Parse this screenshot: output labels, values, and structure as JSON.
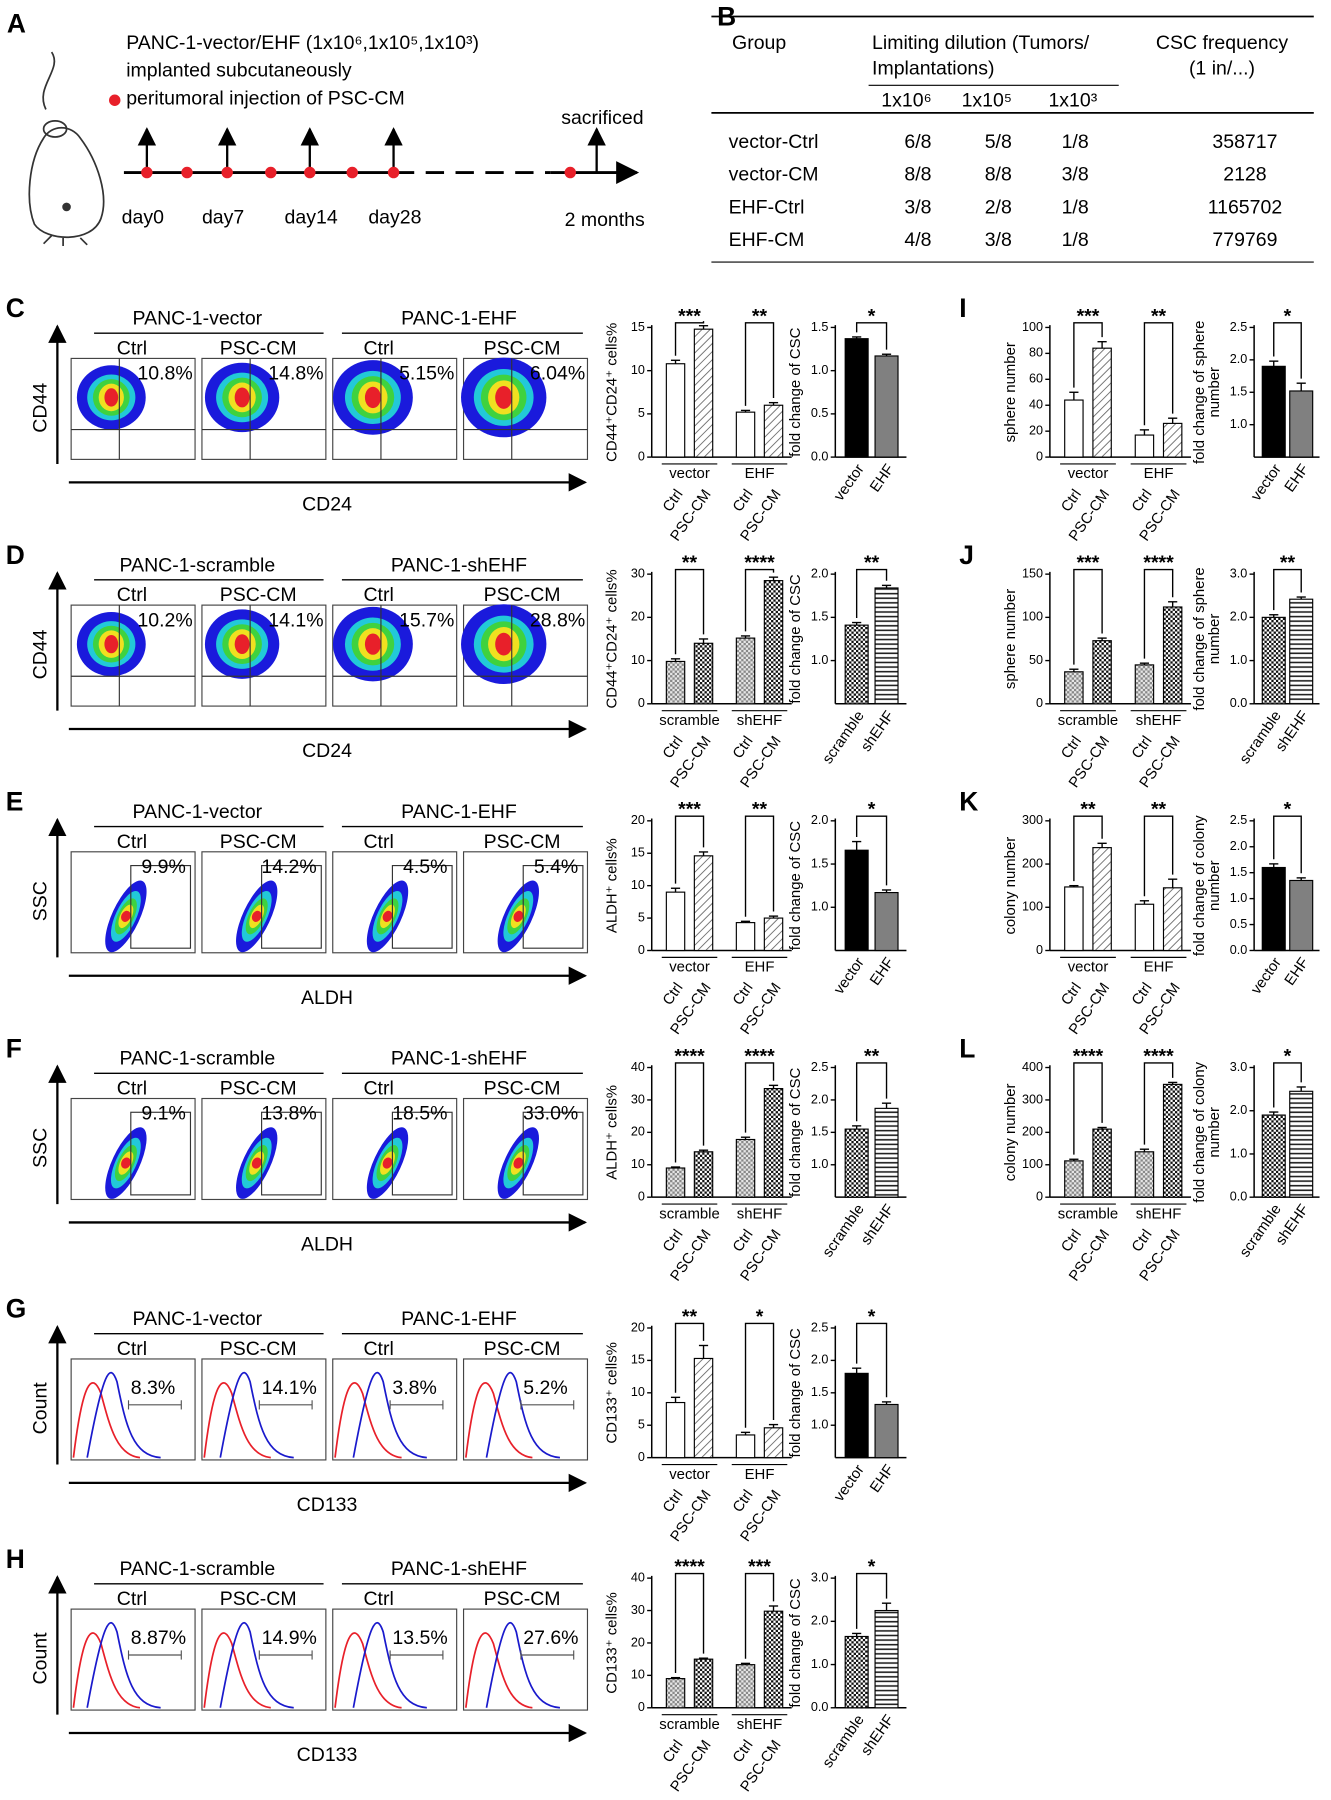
{
  "timeline": {
    "label": "A",
    "title_lines": [
      "PANC-1-vector/EHF (1x10⁶,1x10⁵,1x10³)",
      "implanted subcutaneously"
    ],
    "legend": "peritumoral injection of PSC-CM",
    "days": [
      "day0",
      "day7",
      "day14",
      "day28"
    ],
    "end_label": "sacrificed",
    "end_time": "2 months"
  },
  "table": {
    "label": "B",
    "header": [
      [
        "Group"
      ],
      [
        "Limiting dilution (Tumors/",
        "Implantations)"
      ],
      [
        "CSC frequency",
        "(1 in/...)"
      ]
    ],
    "subheader": [
      "1x10⁶",
      "1x10⁵",
      "1x10³"
    ],
    "rows": [
      [
        "vector-Ctrl",
        "6/8",
        "5/8",
        "1/8",
        "358717"
      ],
      [
        "vector-CM",
        "8/8",
        "8/8",
        "3/8",
        "2128"
      ],
      [
        "EHF-Ctrl",
        "3/8",
        "2/8",
        "1/8",
        "1165702"
      ],
      [
        "EHF-CM",
        "4/8",
        "3/8",
        "1/8",
        "779769"
      ]
    ]
  },
  "flow_panels": [
    {
      "label": "C",
      "kind": "quadrant",
      "groups": [
        "PANC-1-vector",
        "PANC-1-EHF"
      ],
      "conditions": [
        "Ctrl",
        "PSC-CM",
        "Ctrl",
        "PSC-CM"
      ],
      "percents": [
        "10.8%",
        "14.8%",
        "5.15%",
        "6.04%"
      ],
      "y_axis": "CD44",
      "x_axis": "CD24"
    },
    {
      "label": "D",
      "kind": "quadrant",
      "groups": [
        "PANC-1-scramble",
        "PANC-1-shEHF"
      ],
      "conditions": [
        "Ctrl",
        "PSC-CM",
        "Ctrl",
        "PSC-CM"
      ],
      "percents": [
        "10.2%",
        "14.1%",
        "15.7%",
        "28.8%"
      ],
      "y_axis": "CD44",
      "x_axis": "CD24"
    },
    {
      "label": "E",
      "kind": "gate",
      "groups": [
        "PANC-1-vector",
        "PANC-1-EHF"
      ],
      "conditions": [
        "Ctrl",
        "PSC-CM",
        "Ctrl",
        "PSC-CM"
      ],
      "percents": [
        "9.9%",
        "14.2%",
        "4.5%",
        "5.4%"
      ],
      "y_axis": "SSC",
      "x_axis": "ALDH"
    },
    {
      "label": "F",
      "kind": "gate",
      "groups": [
        "PANC-1-scramble",
        "PANC-1-shEHF"
      ],
      "conditions": [
        "Ctrl",
        "PSC-CM",
        "Ctrl",
        "PSC-CM"
      ],
      "percents": [
        "9.1%",
        "13.8%",
        "18.5%",
        "33.0%"
      ],
      "y_axis": "SSC",
      "x_axis": "ALDH"
    },
    {
      "label": "G",
      "kind": "histogram",
      "groups": [
        "PANC-1-vector",
        "PANC-1-EHF"
      ],
      "conditions": [
        "Ctrl",
        "PSC-CM",
        "Ctrl",
        "PSC-CM"
      ],
      "percents": [
        "8.3%",
        "14.1%",
        "3.8%",
        "5.2%"
      ],
      "y_axis": "Count",
      "x_axis": "CD133"
    },
    {
      "label": "H",
      "kind": "histogram",
      "groups": [
        "PANC-1-scramble",
        "PANC-1-shEHF"
      ],
      "conditions": [
        "Ctrl",
        "PSC-CM",
        "Ctrl",
        "PSC-CM"
      ],
      "percents": [
        "8.87%",
        "14.9%",
        "13.5%",
        "27.6%"
      ],
      "y_axis": "Count",
      "x_axis": "CD133"
    }
  ],
  "chart_data": [
    {
      "type": "bar",
      "ylabel": "CD44⁺CD24⁺ cells%",
      "groups": [
        "vector",
        "EHF"
      ],
      "categories": [
        "Ctrl",
        "PSC-CM",
        "Ctrl",
        "PSC-CM"
      ],
      "values": [
        10.8,
        14.8,
        5.2,
        6.0
      ],
      "errors": [
        0.4,
        0.4,
        0.2,
        0.3
      ],
      "fills": [
        "#ffffff",
        "hatch",
        "#ffffff",
        "hatch"
      ],
      "ylim": [
        0,
        15
      ],
      "yticks": [
        0,
        5,
        10,
        15
      ],
      "significance": [
        "***",
        "**"
      ]
    },
    {
      "type": "bar",
      "ylabel": "fold change of CSC",
      "categories": [
        "vector",
        "EHF"
      ],
      "values": [
        1.37,
        1.17
      ],
      "errors": [
        0.02,
        0.02
      ],
      "fills": [
        "#000000",
        "#808080"
      ],
      "ylim": [
        0,
        1.5
      ],
      "yticks": [
        {
          "value": 0,
          "label": "0.0"
        },
        0.5,
        {
          "value": 1,
          "label": "1.0"
        },
        1.5
      ],
      "significance": [
        "*"
      ]
    },
    {
      "type": "bar",
      "ylabel": "CD44⁺CD24⁺ cells%",
      "groups": [
        "scramble",
        "shEHF"
      ],
      "categories": [
        "Ctrl",
        "PSC-CM",
        "Ctrl",
        "PSC-CM"
      ],
      "values": [
        9.8,
        14.0,
        15.2,
        28.5
      ],
      "errors": [
        0.6,
        1.0,
        0.5,
        0.8
      ],
      "fills": [
        "checkLight",
        "checkDark",
        "checkLight",
        "checkDark"
      ],
      "ylim": [
        0,
        30
      ],
      "yticks": [
        0,
        10,
        20,
        30
      ],
      "significance": [
        "**",
        "****"
      ]
    },
    {
      "type": "bar",
      "ylabel": "fold change of CSC",
      "categories": [
        "scramble",
        "shEHF"
      ],
      "values": [
        1.41,
        1.84
      ],
      "errors": [
        0.03,
        0.03
      ],
      "fills": [
        "checkDark",
        "hstripe"
      ],
      "ylim": [
        0.5,
        2.0
      ],
      "yticks": [
        {
          "value": 1,
          "label": "1.0"
        },
        1.5,
        {
          "value": 2,
          "label": "2.0"
        }
      ],
      "significance": [
        "**"
      ]
    },
    {
      "type": "bar",
      "ylabel": "ALDH⁺ cells%",
      "groups": [
        "vector",
        "EHF"
      ],
      "categories": [
        "Ctrl",
        "PSC-CM",
        "Ctrl",
        "PSC-CM"
      ],
      "values": [
        9.0,
        14.6,
        4.3,
        5.0
      ],
      "errors": [
        0.6,
        0.6,
        0.2,
        0.3
      ],
      "fills": [
        "#ffffff",
        "hatch",
        "#ffffff",
        "hatch"
      ],
      "ylim": [
        0,
        20
      ],
      "yticks": [
        0,
        5,
        10,
        15,
        20
      ],
      "significance": [
        "***",
        "**"
      ]
    },
    {
      "type": "bar",
      "ylabel": "fold change of CSC",
      "categories": [
        "vector",
        "EHF"
      ],
      "values": [
        1.66,
        1.17
      ],
      "errors": [
        0.1,
        0.03
      ],
      "fills": [
        "#000000",
        "#808080"
      ],
      "ylim": [
        0.5,
        2.0
      ],
      "yticks": [
        {
          "value": 1,
          "label": "1.0"
        },
        1.5,
        {
          "value": 2,
          "label": "2.0"
        }
      ],
      "significance": [
        "*"
      ]
    },
    {
      "type": "bar",
      "ylabel": "ALDH⁺ cells%",
      "groups": [
        "scramble",
        "shEHF"
      ],
      "categories": [
        "Ctrl",
        "PSC-CM",
        "Ctrl",
        "PSC-CM"
      ],
      "values": [
        9.0,
        14.0,
        17.8,
        33.5
      ],
      "errors": [
        0.3,
        0.5,
        0.7,
        1.0
      ],
      "fills": [
        "checkLight",
        "checkDark",
        "checkLight",
        "checkDark"
      ],
      "ylim": [
        0,
        40
      ],
      "yticks": [
        0,
        10,
        20,
        30,
        40
      ],
      "significance": [
        "****",
        "****"
      ]
    },
    {
      "type": "bar",
      "ylabel": "fold change of CSC",
      "categories": [
        "scramble",
        "shEHF"
      ],
      "values": [
        1.55,
        1.87
      ],
      "errors": [
        0.05,
        0.08
      ],
      "fills": [
        "checkDark",
        "hstripe"
      ],
      "ylim": [
        0.5,
        2.5
      ],
      "yticks": [
        {
          "value": 1,
          "label": "1.0"
        },
        1.5,
        {
          "value": 2,
          "label": "2.0"
        },
        2.5
      ],
      "significance": [
        "**"
      ]
    },
    {
      "type": "bar",
      "ylabel": "CD133⁺ cells%",
      "groups": [
        "vector",
        "EHF"
      ],
      "categories": [
        "Ctrl",
        "PSC-CM",
        "Ctrl",
        "PSC-CM"
      ],
      "values": [
        8.5,
        15.3,
        3.5,
        4.6
      ],
      "errors": [
        0.8,
        2.0,
        0.4,
        0.5
      ],
      "fills": [
        "#ffffff",
        "hatch",
        "#ffffff",
        "hatch"
      ],
      "ylim": [
        0,
        20
      ],
      "yticks": [
        0,
        5,
        10,
        15,
        20
      ],
      "significance": [
        "**",
        "*"
      ]
    },
    {
      "type": "bar",
      "ylabel": "fold change of CSC",
      "categories": [
        "vector",
        "EHF"
      ],
      "values": [
        1.8,
        1.32
      ],
      "errors": [
        0.08,
        0.04
      ],
      "fills": [
        "#000000",
        "#808080"
      ],
      "ylim": [
        0.5,
        2.5
      ],
      "yticks": [
        {
          "value": 1,
          "label": "1.0"
        },
        1.5,
        {
          "value": 2,
          "label": "2.0"
        },
        2.5
      ],
      "significance": [
        "*"
      ]
    },
    {
      "type": "bar",
      "ylabel": "CD133⁺ cells%",
      "groups": [
        "scramble",
        "shEHF"
      ],
      "categories": [
        "Ctrl",
        "PSC-CM",
        "Ctrl",
        "PSC-CM"
      ],
      "values": [
        9.0,
        15.0,
        13.3,
        29.8
      ],
      "errors": [
        0.3,
        0.3,
        0.4,
        1.6
      ],
      "fills": [
        "checkLight",
        "checkDark",
        "checkLight",
        "checkDark"
      ],
      "ylim": [
        0,
        40
      ],
      "yticks": [
        0,
        10,
        20,
        30,
        40
      ],
      "significance": [
        "****",
        "***"
      ]
    },
    {
      "type": "bar",
      "ylabel": "fold change of CSC",
      "categories": [
        "scramble",
        "shEHF"
      ],
      "values": [
        1.65,
        2.25
      ],
      "errors": [
        0.07,
        0.17
      ],
      "fills": [
        "checkDark",
        "hstripe"
      ],
      "ylim": [
        0,
        3
      ],
      "yticks": [
        {
          "value": 0,
          "label": "0.0"
        },
        {
          "value": 1,
          "label": "1.0"
        },
        {
          "value": 2,
          "label": "2.0"
        },
        {
          "value": 3,
          "label": "3.0"
        }
      ],
      "significance": [
        "*"
      ]
    },
    {
      "type": "bar",
      "panel": "I",
      "ylabel": "sphere number",
      "groups": [
        "vector",
        "EHF"
      ],
      "categories": [
        "Ctrl",
        "PSC-CM",
        "Ctrl",
        "PSC-CM"
      ],
      "values": [
        44,
        84,
        17,
        26
      ],
      "errors": [
        6,
        5,
        4,
        4
      ],
      "fills": [
        "#ffffff",
        "hatch",
        "#ffffff",
        "hatch"
      ],
      "ylim": [
        0,
        100
      ],
      "yticks": [
        0,
        20,
        40,
        60,
        80,
        100
      ],
      "significance": [
        "***",
        "**"
      ]
    },
    {
      "type": "bar",
      "ylabel": [
        "fold change of sphere",
        "number"
      ],
      "categories": [
        "vector",
        "EHF"
      ],
      "values": [
        1.9,
        1.52
      ],
      "errors": [
        0.08,
        0.12
      ],
      "fills": [
        "#000000",
        "#808080"
      ],
      "ylim": [
        0.5,
        2.5
      ],
      "yticks": [
        {
          "value": 1,
          "label": "1.0"
        },
        1.5,
        {
          "value": 2,
          "label": "2.0"
        },
        2.5
      ],
      "significance": [
        "*"
      ]
    },
    {
      "type": "bar",
      "panel": "J",
      "ylabel": "sphere number",
      "groups": [
        "scramble",
        "shEHF"
      ],
      "categories": [
        "Ctrl",
        "PSC-CM",
        "Ctrl",
        "PSC-CM"
      ],
      "values": [
        37,
        73,
        45,
        112
      ],
      "errors": [
        3,
        3,
        2,
        6
      ],
      "fills": [
        "checkLight",
        "checkDark",
        "checkLight",
        "checkDark"
      ],
      "ylim": [
        0,
        150
      ],
      "yticks": [
        0,
        50,
        100,
        150
      ],
      "significance": [
        "***",
        "****"
      ]
    },
    {
      "type": "bar",
      "ylabel": [
        "fold change of sphere",
        "number"
      ],
      "categories": [
        "scramble",
        "shEHF"
      ],
      "values": [
        2.0,
        2.42
      ],
      "errors": [
        0.06,
        0.05
      ],
      "fills": [
        "checkDark",
        "hstripe"
      ],
      "ylim": [
        0,
        3
      ],
      "yticks": [
        {
          "value": 0,
          "label": "0.0"
        },
        {
          "value": 1,
          "label": "1.0"
        },
        {
          "value": 2,
          "label": "2.0"
        },
        {
          "value": 3,
          "label": "3.0"
        }
      ],
      "significance": [
        "**"
      ]
    },
    {
      "type": "bar",
      "panel": "K",
      "ylabel": "colony number",
      "groups": [
        "vector",
        "EHF"
      ],
      "categories": [
        "Ctrl",
        "PSC-CM",
        "Ctrl",
        "PSC-CM"
      ],
      "values": [
        147,
        238,
        107,
        145
      ],
      "errors": [
        3,
        10,
        8,
        20
      ],
      "fills": [
        "#ffffff",
        "hatch",
        "#ffffff",
        "hatch"
      ],
      "ylim": [
        0,
        300
      ],
      "yticks": [
        0,
        100,
        200,
        300
      ],
      "significance": [
        "**",
        "**"
      ]
    },
    {
      "type": "bar",
      "ylabel": [
        "fold change of colony",
        "number"
      ],
      "categories": [
        "vector",
        "EHF"
      ],
      "values": [
        1.6,
        1.35
      ],
      "errors": [
        0.07,
        0.05
      ],
      "fills": [
        "#000000",
        "#808080"
      ],
      "ylim": [
        0,
        2.5
      ],
      "yticks": [
        {
          "value": 0,
          "label": "0.0"
        },
        0.5,
        {
          "value": 1,
          "label": "1.0"
        },
        1.5,
        {
          "value": 2,
          "label": "2.0"
        },
        2.5
      ],
      "significance": [
        "*"
      ]
    },
    {
      "type": "bar",
      "panel": "L",
      "ylabel": "colony number",
      "groups": [
        "scramble",
        "shEHF"
      ],
      "categories": [
        "Ctrl",
        "PSC-CM",
        "Ctrl",
        "PSC-CM"
      ],
      "values": [
        112,
        210,
        140,
        348
      ],
      "errors": [
        5,
        5,
        8,
        6
      ],
      "fills": [
        "checkLight",
        "checkDark",
        "checkLight",
        "checkDark"
      ],
      "ylim": [
        0,
        400
      ],
      "yticks": [
        0,
        100,
        200,
        300,
        400
      ],
      "significance": [
        "****",
        "****"
      ]
    },
    {
      "type": "bar",
      "ylabel": [
        "fold change of colony",
        "number"
      ],
      "categories": [
        "scramble",
        "shEHF"
      ],
      "values": [
        1.9,
        2.45
      ],
      "errors": [
        0.07,
        0.1
      ],
      "fills": [
        "checkDark",
        "hstripe"
      ],
      "ylim": [
        0,
        3
      ],
      "yticks": [
        {
          "value": 0,
          "label": "0.0"
        },
        {
          "value": 1,
          "label": "1.0"
        },
        {
          "value": 2,
          "label": "2.0"
        },
        {
          "value": 3,
          "label": "3.0"
        }
      ],
      "significance": [
        "*"
      ]
    }
  ]
}
